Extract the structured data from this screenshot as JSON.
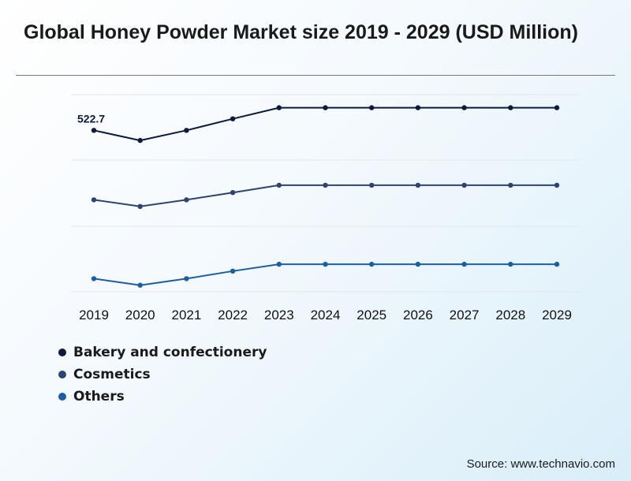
{
  "chart_data": {
    "type": "line",
    "title": "Global Honey Powder Market size 2019 - 2029 (USD Million)",
    "xlabel": "",
    "ylabel": "",
    "categories": [
      "2019",
      "2020",
      "2021",
      "2022",
      "2023",
      "2024",
      "2025",
      "2026",
      "2027",
      "2028",
      "2029"
    ],
    "series": [
      {
        "name": "Bakery and confectionery",
        "color": "#0c1a3d",
        "values": [
          522.7,
          515.0,
          522.7,
          531.5,
          540.0,
          540.0,
          540.0,
          540.0,
          540.0,
          540.0,
          540.0
        ],
        "range": [
          500,
          550
        ],
        "data_labels": [
          {
            "index": 0,
            "text": "522.7"
          }
        ]
      },
      {
        "name": "Cosmetics",
        "color": "#2e4470",
        "values": [
          100.0,
          95.0,
          100.0,
          105.5,
          111.0,
          111.0,
          111.0,
          111.0,
          111.0,
          111.0,
          111.0
        ],
        "range": [
          80,
          130
        ]
      },
      {
        "name": "Others",
        "color": "#1a5fa6",
        "values": [
          50.0,
          47.5,
          50.0,
          52.9,
          55.5,
          55.5,
          55.5,
          55.5,
          55.5,
          55.5,
          55.5
        ],
        "range": [
          45,
          70
        ]
      }
    ],
    "grid": true,
    "legend_position": "bottom-left"
  },
  "source": "Source: www.technavio.com"
}
